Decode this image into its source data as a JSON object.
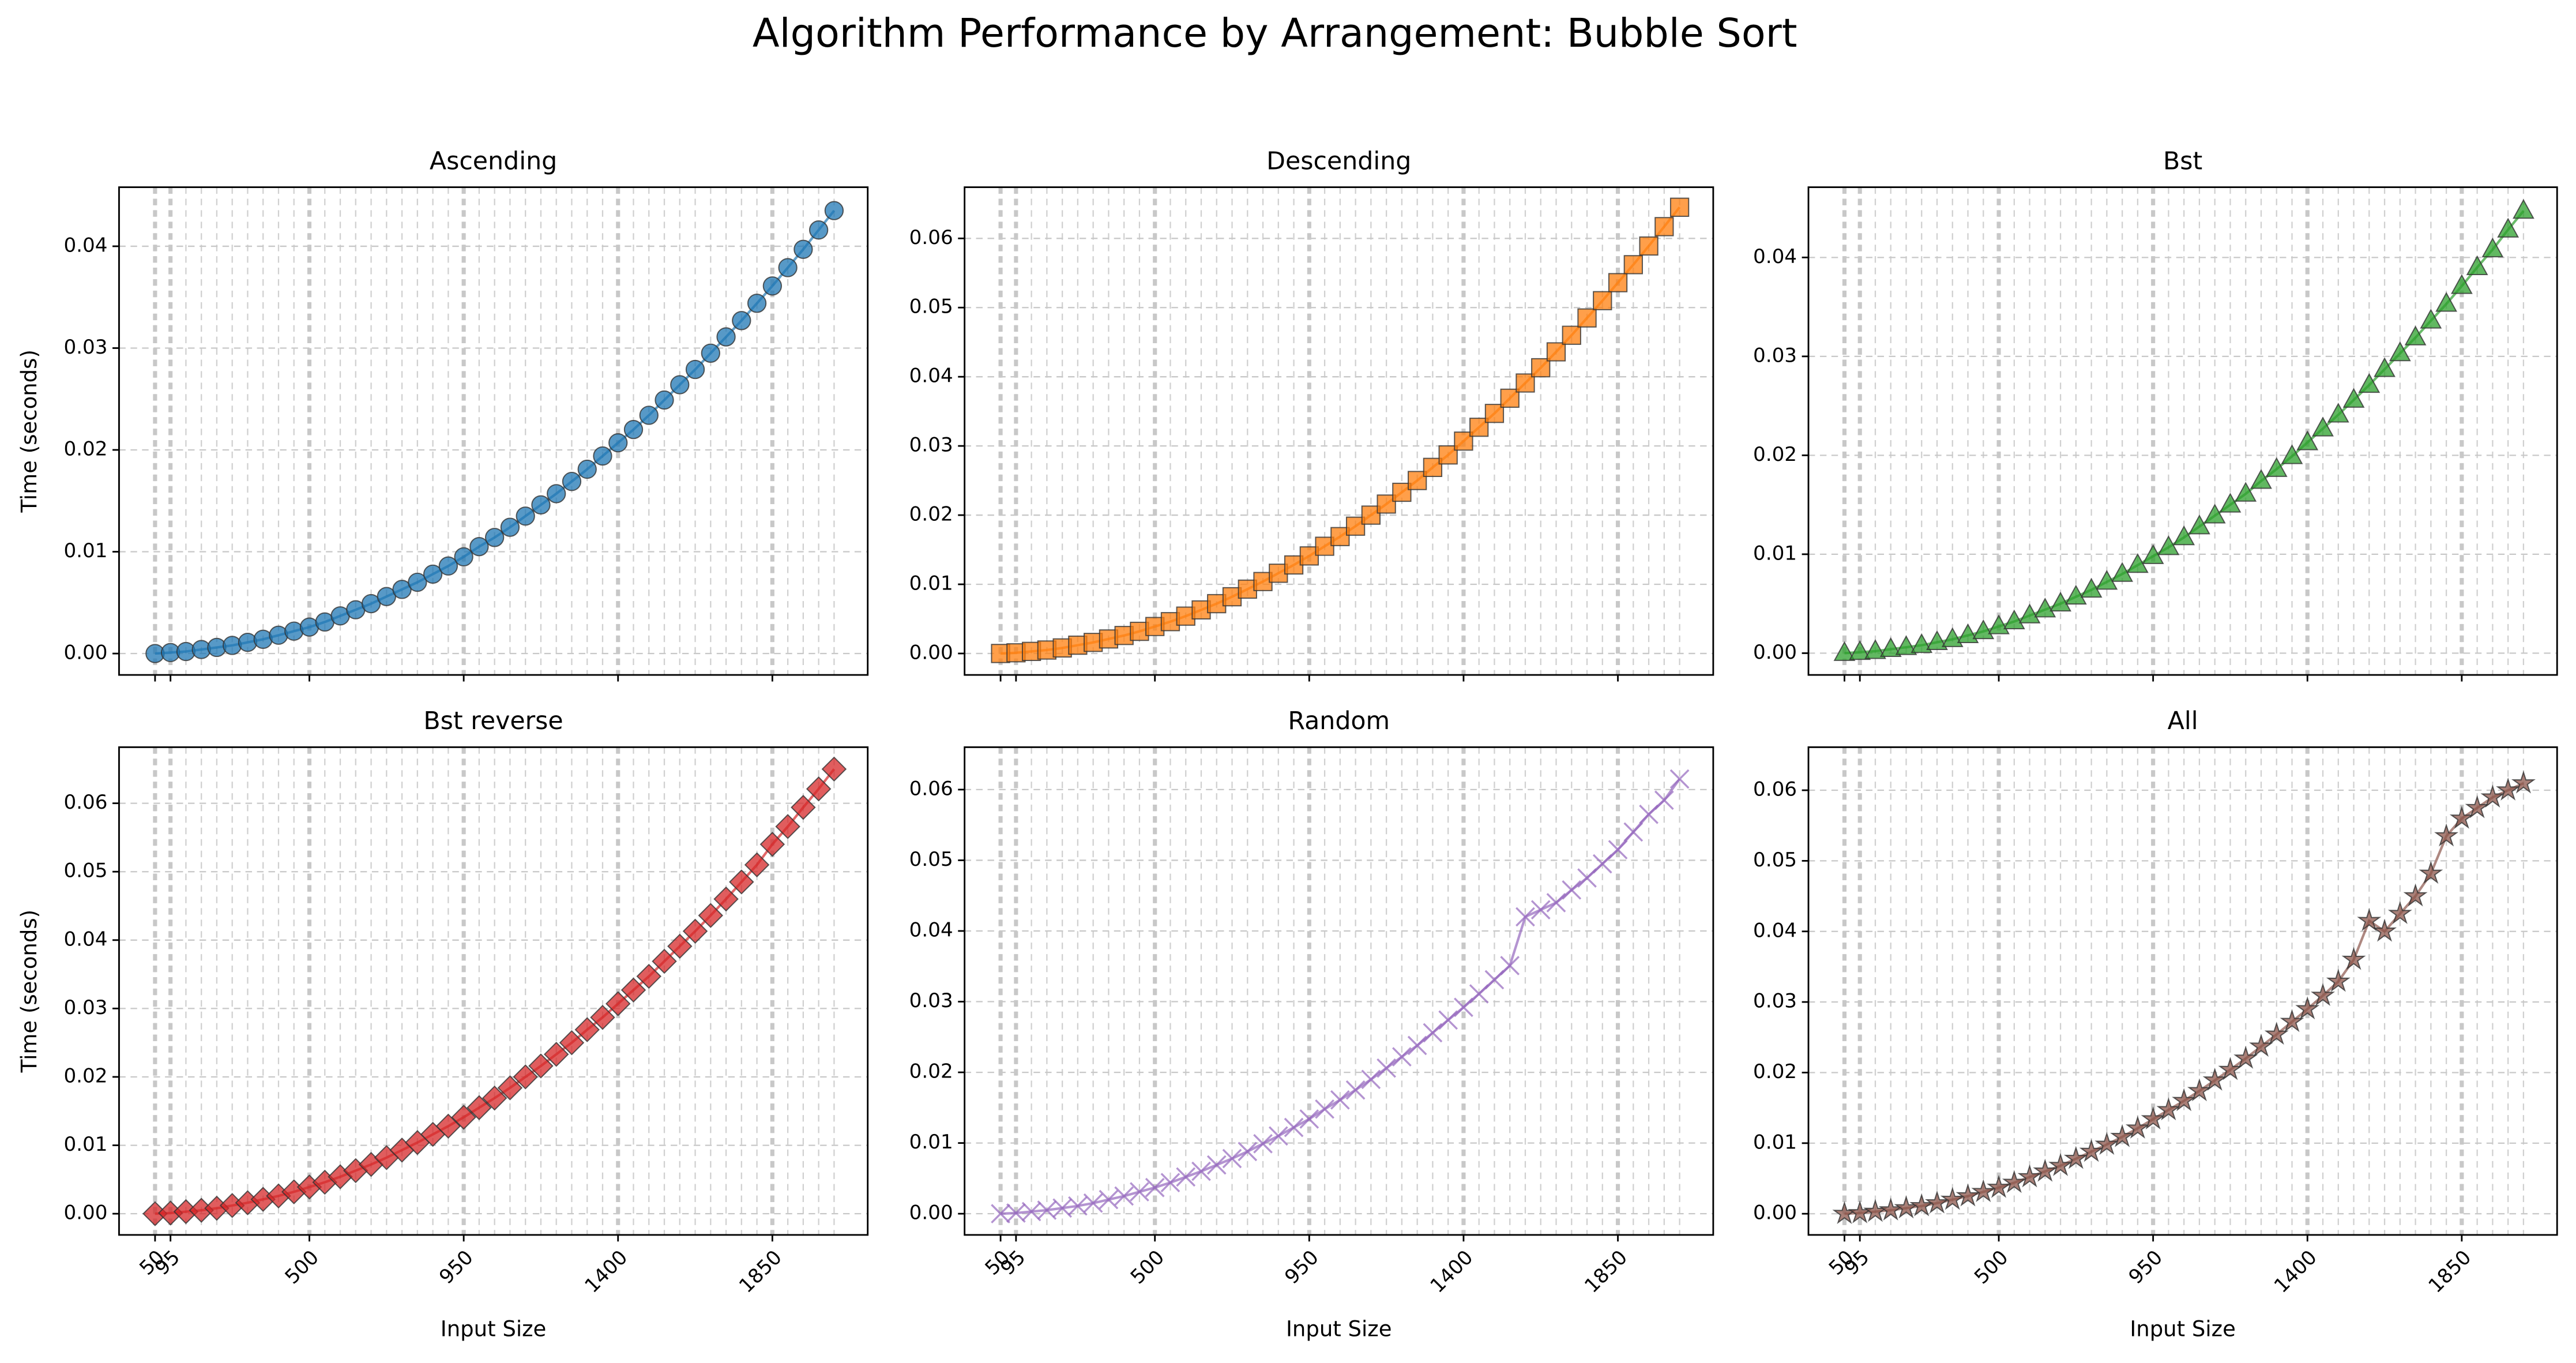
{
  "title": "Algorithm Performance by Arrangement: Bubble Sort",
  "chart_data": [
    {
      "type": "line",
      "title": "Ascending",
      "ylabel": "Time (seconds)",
      "grid": true,
      "x": [
        50,
        95,
        140,
        185,
        230,
        275,
        320,
        365,
        410,
        455,
        500,
        545,
        590,
        635,
        680,
        725,
        770,
        815,
        860,
        905,
        950,
        995,
        1040,
        1085,
        1130,
        1175,
        1220,
        1265,
        1310,
        1355,
        1400,
        1445,
        1490,
        1535,
        1580,
        1625,
        1670,
        1715,
        1760,
        1805,
        1850,
        1895,
        1940,
        1985,
        2030
      ],
      "xlim": [
        -55,
        2128
      ],
      "xticks": [
        50,
        95,
        500,
        950,
        1400,
        1850
      ],
      "ylim": [
        -0.0021,
        0.0458
      ],
      "yticks": [
        {
          "value": 0,
          "label": "0.00"
        },
        {
          "value": 0.01,
          "label": "0.01"
        },
        {
          "value": 0.02,
          "label": "0.02"
        },
        {
          "value": 0.03,
          "label": "0.03"
        },
        {
          "value": 0.04,
          "label": "0.04"
        }
      ],
      "series": [
        {
          "color": "#1f77b4",
          "marker": "circle",
          "values": [
            0.0,
            0.0001,
            0.0002,
            0.0004,
            0.0006,
            0.0008,
            0.0011,
            0.0014,
            0.0018,
            0.0022,
            0.0026,
            0.0031,
            0.0037,
            0.0043,
            0.0049,
            0.0056,
            0.0063,
            0.007,
            0.0078,
            0.0086,
            0.0095,
            0.0105,
            0.0114,
            0.0124,
            0.0135,
            0.0146,
            0.0157,
            0.0169,
            0.0181,
            0.0194,
            0.0207,
            0.022,
            0.0234,
            0.0249,
            0.0264,
            0.0279,
            0.0295,
            0.0311,
            0.0327,
            0.0344,
            0.0361,
            0.0379,
            0.0397,
            0.0416,
            0.0435
          ]
        }
      ]
    },
    {
      "type": "line",
      "title": "Descending",
      "grid": true,
      "x": [
        50,
        95,
        140,
        185,
        230,
        275,
        320,
        365,
        410,
        455,
        500,
        545,
        590,
        635,
        680,
        725,
        770,
        815,
        860,
        905,
        950,
        995,
        1040,
        1085,
        1130,
        1175,
        1220,
        1265,
        1310,
        1355,
        1400,
        1445,
        1490,
        1535,
        1580,
        1625,
        1670,
        1715,
        1760,
        1805,
        1850,
        1895,
        1940,
        1985,
        2030
      ],
      "xlim": [
        -55,
        2128
      ],
      "xticks": [
        50,
        95,
        500,
        950,
        1400,
        1850
      ],
      "ylim": [
        -0.0031,
        0.0674
      ],
      "yticks": [
        {
          "value": 0,
          "label": "0.00"
        },
        {
          "value": 0.01,
          "label": "0.01"
        },
        {
          "value": 0.02,
          "label": "0.02"
        },
        {
          "value": 0.03,
          "label": "0.03"
        },
        {
          "value": 0.04,
          "label": "0.04"
        },
        {
          "value": 0.05,
          "label": "0.05"
        },
        {
          "value": 0.06,
          "label": "0.06"
        }
      ],
      "series": [
        {
          "color": "#ff7f0e",
          "marker": "square",
          "values": [
            0.0,
            0.0001,
            0.0003,
            0.0005,
            0.0008,
            0.0012,
            0.0016,
            0.0021,
            0.0026,
            0.0032,
            0.0039,
            0.0046,
            0.0054,
            0.0063,
            0.0072,
            0.0082,
            0.0093,
            0.0104,
            0.0116,
            0.0128,
            0.0141,
            0.0155,
            0.0169,
            0.0184,
            0.02,
            0.0216,
            0.0233,
            0.025,
            0.0269,
            0.0287,
            0.0307,
            0.0327,
            0.0347,
            0.0369,
            0.0391,
            0.0413,
            0.0436,
            0.046,
            0.0485,
            0.051,
            0.0536,
            0.0562,
            0.0589,
            0.0617,
            0.0645
          ]
        }
      ]
    },
    {
      "type": "line",
      "title": "Bst",
      "grid": true,
      "x": [
        50,
        95,
        140,
        185,
        230,
        275,
        320,
        365,
        410,
        455,
        500,
        545,
        590,
        635,
        680,
        725,
        770,
        815,
        860,
        905,
        950,
        995,
        1040,
        1085,
        1130,
        1175,
        1220,
        1265,
        1310,
        1355,
        1400,
        1445,
        1490,
        1535,
        1580,
        1625,
        1670,
        1715,
        1760,
        1805,
        1850,
        1895,
        1940,
        1985,
        2030
      ],
      "xlim": [
        -55,
        2128
      ],
      "xticks": [
        50,
        95,
        500,
        950,
        1400,
        1850
      ],
      "ylim": [
        -0.0022,
        0.0471
      ],
      "yticks": [
        {
          "value": 0,
          "label": "0.00"
        },
        {
          "value": 0.01,
          "label": "0.01"
        },
        {
          "value": 0.02,
          "label": "0.02"
        },
        {
          "value": 0.03,
          "label": "0.03"
        },
        {
          "value": 0.04,
          "label": "0.04"
        }
      ],
      "series": [
        {
          "color": "#2ca02c",
          "marker": "triangle",
          "values": [
            0.0,
            0.0001,
            0.0002,
            0.0004,
            0.0006,
            0.0008,
            0.0011,
            0.0014,
            0.0018,
            0.0022,
            0.0027,
            0.0032,
            0.0038,
            0.0044,
            0.005,
            0.0057,
            0.0064,
            0.0072,
            0.008,
            0.0089,
            0.0098,
            0.0107,
            0.0117,
            0.0128,
            0.0139,
            0.015,
            0.0161,
            0.0174,
            0.0186,
            0.0199,
            0.0213,
            0.0227,
            0.0241,
            0.0256,
            0.0271,
            0.0287,
            0.0303,
            0.0319,
            0.0336,
            0.0353,
            0.0371,
            0.039,
            0.0408,
            0.0428,
            0.0447
          ]
        }
      ]
    },
    {
      "type": "line",
      "title": "Bst reverse",
      "ylabel": "Time (seconds)",
      "xlabel": "Input Size",
      "grid": true,
      "x": [
        50,
        95,
        140,
        185,
        230,
        275,
        320,
        365,
        410,
        455,
        500,
        545,
        590,
        635,
        680,
        725,
        770,
        815,
        860,
        905,
        950,
        995,
        1040,
        1085,
        1130,
        1175,
        1220,
        1265,
        1310,
        1355,
        1400,
        1445,
        1490,
        1535,
        1580,
        1625,
        1670,
        1715,
        1760,
        1805,
        1850,
        1895,
        1940,
        1985,
        2030
      ],
      "xlim": [
        -55,
        2128
      ],
      "xticks": [
        50,
        95,
        500,
        950,
        1400,
        1850
      ],
      "ylim": [
        -0.0031,
        0.0682
      ],
      "yticks": [
        {
          "value": 0,
          "label": "0.00"
        },
        {
          "value": 0.01,
          "label": "0.01"
        },
        {
          "value": 0.02,
          "label": "0.02"
        },
        {
          "value": 0.03,
          "label": "0.03"
        },
        {
          "value": 0.04,
          "label": "0.04"
        },
        {
          "value": 0.05,
          "label": "0.05"
        },
        {
          "value": 0.06,
          "label": "0.06"
        }
      ],
      "series": [
        {
          "color": "#d62728",
          "marker": "diamond",
          "values": [
            0.0,
            0.0001,
            0.0003,
            0.0005,
            0.0008,
            0.0012,
            0.0016,
            0.0021,
            0.0026,
            0.0032,
            0.0039,
            0.0046,
            0.0054,
            0.0063,
            0.0072,
            0.0082,
            0.0093,
            0.0104,
            0.0116,
            0.0128,
            0.0141,
            0.0155,
            0.0169,
            0.0184,
            0.02,
            0.0216,
            0.0233,
            0.025,
            0.0269,
            0.0287,
            0.0307,
            0.0327,
            0.0347,
            0.0369,
            0.0391,
            0.0413,
            0.0436,
            0.046,
            0.0485,
            0.051,
            0.054,
            0.0566,
            0.0594,
            0.0621,
            0.065
          ]
        }
      ]
    },
    {
      "type": "line",
      "title": "Random",
      "xlabel": "Input Size",
      "grid": true,
      "x": [
        50,
        95,
        140,
        185,
        230,
        275,
        320,
        365,
        410,
        455,
        500,
        545,
        590,
        635,
        680,
        725,
        770,
        815,
        860,
        905,
        950,
        995,
        1040,
        1085,
        1130,
        1175,
        1220,
        1265,
        1310,
        1355,
        1400,
        1445,
        1490,
        1535,
        1580,
        1625,
        1670,
        1715,
        1760,
        1805,
        1850,
        1895,
        1940,
        1985,
        2030
      ],
      "xlim": [
        -55,
        2128
      ],
      "xticks": [
        50,
        95,
        500,
        950,
        1400,
        1850
      ],
      "ylim": [
        -0.003,
        0.066
      ],
      "yticks": [
        {
          "value": 0,
          "label": "0.00"
        },
        {
          "value": 0.01,
          "label": "0.01"
        },
        {
          "value": 0.02,
          "label": "0.02"
        },
        {
          "value": 0.03,
          "label": "0.03"
        },
        {
          "value": 0.04,
          "label": "0.04"
        },
        {
          "value": 0.05,
          "label": "0.05"
        },
        {
          "value": 0.06,
          "label": "0.06"
        }
      ],
      "series": [
        {
          "color": "#9467bd",
          "marker": "x",
          "values": [
            0.0,
            0.0001,
            0.0003,
            0.0005,
            0.0008,
            0.0011,
            0.0015,
            0.002,
            0.0025,
            0.0031,
            0.0037,
            0.0044,
            0.0052,
            0.006,
            0.0069,
            0.0078,
            0.0088,
            0.0099,
            0.011,
            0.0122,
            0.0134,
            0.0148,
            0.0161,
            0.0175,
            0.019,
            0.0206,
            0.0222,
            0.0238,
            0.0256,
            0.0274,
            0.0292,
            0.0311,
            0.0331,
            0.0351,
            0.042,
            0.043,
            0.044,
            0.0458,
            0.0475,
            0.0495,
            0.0515,
            0.054,
            0.0565,
            0.0585,
            0.0615
          ]
        }
      ]
    },
    {
      "type": "line",
      "title": "All",
      "xlabel": "Input Size",
      "grid": true,
      "x": [
        50,
        95,
        140,
        185,
        230,
        275,
        320,
        365,
        410,
        455,
        500,
        545,
        590,
        635,
        680,
        725,
        770,
        815,
        860,
        905,
        950,
        995,
        1040,
        1085,
        1130,
        1175,
        1220,
        1265,
        1310,
        1355,
        1400,
        1445,
        1490,
        1535,
        1580,
        1625,
        1670,
        1715,
        1760,
        1805,
        1850,
        1895,
        1940,
        1985,
        2030
      ],
      "xlim": [
        -55,
        2128
      ],
      "xticks": [
        50,
        95,
        500,
        950,
        1400,
        1850
      ],
      "ylim": [
        -0.003,
        0.0661
      ],
      "yticks": [
        {
          "value": 0,
          "label": "0.00"
        },
        {
          "value": 0.01,
          "label": "0.01"
        },
        {
          "value": 0.02,
          "label": "0.02"
        },
        {
          "value": 0.03,
          "label": "0.03"
        },
        {
          "value": 0.04,
          "label": "0.04"
        },
        {
          "value": 0.05,
          "label": "0.05"
        },
        {
          "value": 0.06,
          "label": "0.06"
        }
      ],
      "series": [
        {
          "color": "#8c564b",
          "marker": "star",
          "values": [
            0.0,
            0.0001,
            0.0003,
            0.0005,
            0.0008,
            0.0011,
            0.0015,
            0.002,
            0.0025,
            0.0031,
            0.0037,
            0.0044,
            0.0052,
            0.006,
            0.0068,
            0.0078,
            0.0088,
            0.0098,
            0.0109,
            0.0121,
            0.0134,
            0.0147,
            0.016,
            0.0174,
            0.0189,
            0.0204,
            0.022,
            0.0237,
            0.0254,
            0.0272,
            0.029,
            0.0309,
            0.0329,
            0.036,
            0.0415,
            0.04,
            0.0425,
            0.045,
            0.0482,
            0.0535,
            0.056,
            0.0575,
            0.059,
            0.06,
            0.061
          ]
        }
      ]
    }
  ]
}
